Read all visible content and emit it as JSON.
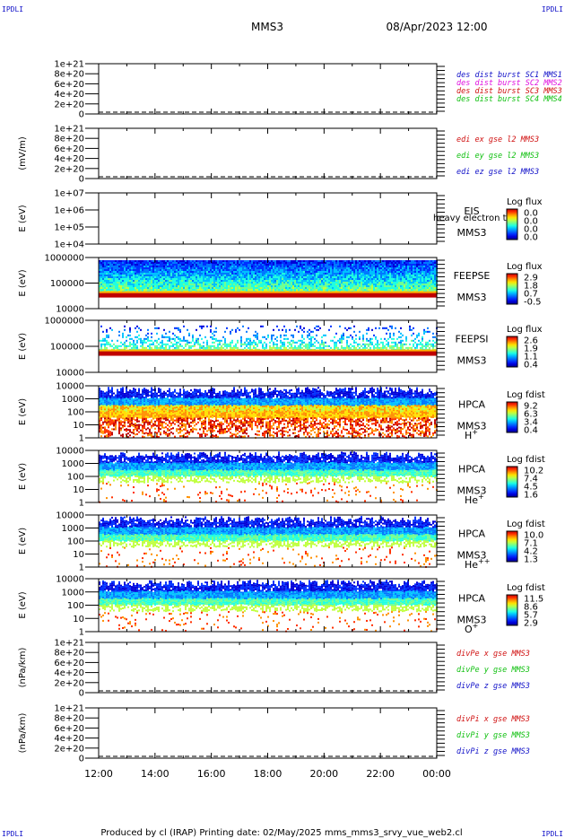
{
  "corner_labels": [
    "IPDLI",
    "IPDLI",
    "IPDLI",
    "IPDLI"
  ],
  "header": {
    "mission": "MMS3",
    "datetime": "08/Apr/2023 12:00"
  },
  "footer": "Produced by cl (IRAP)   Printing date: 02/May/2025   mms_mms3_srvy_vue_web2.cl",
  "time_axis": [
    "12:00",
    "14:00",
    "16:00",
    "18:00",
    "20:00",
    "22:00",
    "00:00"
  ],
  "chart_data": [
    {
      "type": "line",
      "ylabel": "",
      "yticks": [
        "1e+21",
        "8e+20",
        "6e+20",
        "4e+20",
        "2e+20",
        "0"
      ],
      "dashed_zero": true,
      "legend": [
        {
          "text": "des dist burst SC1 MMS1",
          "color": "#1010c8"
        },
        {
          "text": "des dist burst SC2 MMS2",
          "color": "#e010e0"
        },
        {
          "text": "des dist burst SC3 MMS3",
          "color": "#d01010"
        },
        {
          "text": "des dist burst SC4 MMS4",
          "color": "#10c010"
        }
      ]
    },
    {
      "type": "line",
      "ylabel": "(mV/m)",
      "yticks": [
        "1e+21",
        "8e+20",
        "6e+20",
        "4e+20",
        "2e+20",
        "0"
      ],
      "dashed_zero": true,
      "legend": [
        {
          "text": "edi ex gse l2 MMS3",
          "color": "#d01010"
        },
        {
          "text": "edi ey gse l2 MMS3",
          "color": "#10c010"
        },
        {
          "text": "edi ez gse l2 MMS3",
          "color": "#1010c8"
        }
      ]
    },
    {
      "type": "heatmap",
      "ylabel": "E (eV)",
      "yticks": [
        "1e+07",
        "1e+06",
        "1e+05",
        "1e+04"
      ],
      "instrument": [
        "EIS",
        "MMS3"
      ],
      "overlap_text": "heavy electron tof",
      "colorbar": {
        "title": "Log flux",
        "ticks": [
          "0.0",
          "0.0",
          "0.0",
          "0.0"
        ]
      },
      "empty": true
    },
    {
      "type": "heatmap",
      "ylabel": "E (eV)",
      "yticks": [
        "1000000",
        "100000",
        "10000"
      ],
      "instrument": [
        "FEEPSE",
        "MMS3"
      ],
      "colorbar": {
        "title": "Log flux",
        "ticks": [
          "2.9",
          "1.8",
          "0.7",
          "-0.5"
        ]
      }
    },
    {
      "type": "heatmap",
      "ylabel": "E (eV)",
      "yticks": [
        "1000000",
        "100000",
        "10000"
      ],
      "instrument": [
        "FEEPSI",
        "MMS3"
      ],
      "colorbar": {
        "title": "Log flux",
        "ticks": [
          "2.6",
          "1.9",
          "1.1",
          "0.4"
        ]
      }
    },
    {
      "type": "heatmap",
      "ylabel": "E (eV)",
      "yticks": [
        "10000",
        "1000",
        "100",
        "10",
        "1"
      ],
      "instrument": [
        "HPCA",
        "MMS3"
      ],
      "species": {
        "base": "H",
        "sup": "+"
      },
      "colorbar": {
        "title": "Log fdist",
        "ticks": [
          "9.2",
          "6.3",
          "3.4",
          "0.4"
        ]
      }
    },
    {
      "type": "heatmap",
      "ylabel": "E (eV)",
      "yticks": [
        "10000",
        "1000",
        "100",
        "10",
        "1"
      ],
      "instrument": [
        "HPCA",
        "MMS3"
      ],
      "species": {
        "base": "He",
        "sup": "+"
      },
      "colorbar": {
        "title": "Log fdist",
        "ticks": [
          "10.2",
          "7.4",
          "4.5",
          "1.6"
        ]
      }
    },
    {
      "type": "heatmap",
      "ylabel": "E (eV)",
      "yticks": [
        "10000",
        "1000",
        "100",
        "10",
        "1"
      ],
      "instrument": [
        "HPCA",
        "MMS3"
      ],
      "species": {
        "base": "He",
        "sup": "++"
      },
      "colorbar": {
        "title": "Log fdist",
        "ticks": [
          "10.0",
          "7.1",
          "4.2",
          "1.3"
        ]
      }
    },
    {
      "type": "heatmap",
      "ylabel": "E (eV)",
      "yticks": [
        "10000",
        "1000",
        "100",
        "10",
        "1"
      ],
      "instrument": [
        "HPCA",
        "MMS3"
      ],
      "species": {
        "base": "O",
        "sup": "+"
      },
      "colorbar": {
        "title": "Log fdist",
        "ticks": [
          "11.5",
          "8.6",
          "5.7",
          "2.9"
        ]
      }
    },
    {
      "type": "line",
      "ylabel": "(nPa/km)",
      "yticks": [
        "1e+21",
        "8e+20",
        "6e+20",
        "4e+20",
        "2e+20",
        "0"
      ],
      "dashed_zero": true,
      "legend": [
        {
          "text": "divPe x gse MMS3",
          "color": "#d01010"
        },
        {
          "text": "divPe y gse MMS3",
          "color": "#10c010"
        },
        {
          "text": "divPe z gse MMS3",
          "color": "#1010c8"
        }
      ]
    },
    {
      "type": "line",
      "ylabel": "(nPa/km)",
      "yticks": [
        "1e+21",
        "8e+20",
        "6e+20",
        "4e+20",
        "2e+20",
        "0"
      ],
      "dashed_zero": true,
      "legend": [
        {
          "text": "divPi x gse MMS3",
          "color": "#d01010"
        },
        {
          "text": "divPi y gse MMS3",
          "color": "#10c010"
        },
        {
          "text": "divPi z gse MMS3",
          "color": "#1010c8"
        }
      ]
    }
  ]
}
